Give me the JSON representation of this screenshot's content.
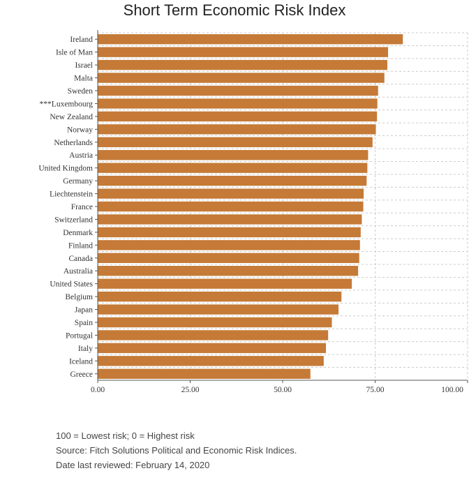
{
  "chart_data": {
    "type": "bar",
    "orientation": "horizontal",
    "title": "Short Term Economic Risk Index",
    "categories": [
      "Ireland",
      "Isle of Man",
      "Israel",
      "Malta",
      "Sweden",
      "***Luxembourg",
      "New Zealand",
      "Norway",
      "Netherlands",
      "Austria",
      "United Kingdom",
      "Germany",
      "Liechtenstein",
      "France",
      "Switzerland",
      "Denmark",
      "Finland",
      "Canada",
      "Australia",
      "United States",
      "Belgium",
      "Japan",
      "Spain",
      "Portugal",
      "Italy",
      "Iceland",
      "Greece"
    ],
    "values": [
      82.5,
      78.5,
      78.3,
      77.5,
      75.8,
      75.6,
      75.5,
      75.2,
      74.3,
      73.1,
      72.9,
      72.7,
      71.9,
      71.8,
      71.4,
      71.1,
      70.9,
      70.7,
      70.4,
      68.7,
      65.9,
      65.1,
      63.3,
      62.3,
      61.7,
      61.1,
      57.5
    ],
    "xlim": [
      0,
      100
    ],
    "xticks": [
      "0.00",
      "25.00",
      "50.00",
      "75.00",
      "100.00"
    ],
    "xtick_values": [
      0,
      25,
      50,
      75,
      100
    ],
    "grid": true,
    "bar_color": "#c57a37"
  },
  "notes": [
    "100 = Lowest risk; 0 = Highest risk",
    "Source: Fitch Solutions Political and Economic Risk Indices.",
    "Date last reviewed: February 14, 2020"
  ]
}
